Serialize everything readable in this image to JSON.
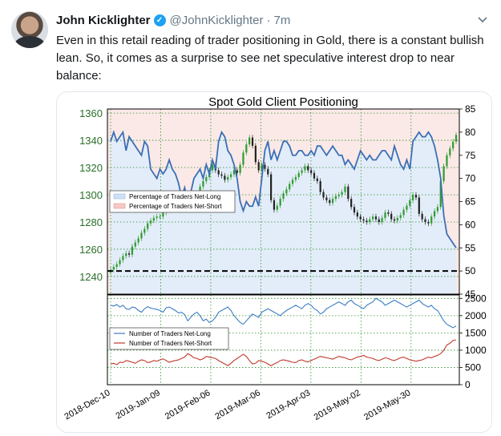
{
  "tweet": {
    "author_name": "John Kicklighter",
    "handle": "@JohnKicklighter",
    "separator": "·",
    "time": "7m",
    "text": "Even in this retail reading of trader positioning in Gold, there is a constant bullish lean. So, it comes as a surprise to see net speculative interest drop to near balance:",
    "icons": {
      "avatar": "profile-photo",
      "verified": "verified-badge-icon",
      "menu": "chevron-down-icon"
    }
  },
  "chart_data": [
    {
      "type": "line",
      "title": "Spot Gold Client Positioning",
      "y_left_ticks": [
        "1360",
        "1340",
        "1320",
        "1300",
        "1280",
        "1260",
        "1240"
      ],
      "y_left_range": [
        1227,
        1363
      ],
      "y_right_ticks": [
        "85",
        "80",
        "75",
        "70",
        "65",
        "60",
        "55",
        "50",
        "45"
      ],
      "y_right_range": [
        45,
        85
      ],
      "legend": [
        "Percentage of Traders Net-Long",
        "Percentage of Traders Net-Short"
      ],
      "legend_position": "middle-left",
      "reference_line": 50,
      "price_candles_close": [
        1245,
        1247,
        1249,
        1252,
        1255,
        1257,
        1256,
        1262,
        1265,
        1268,
        1272,
        1275,
        1279,
        1281,
        1283,
        1284,
        1284,
        1287,
        1289,
        1290,
        1292,
        1289,
        1291,
        1293,
        1292,
        1291,
        1294,
        1296,
        1301,
        1306,
        1310,
        1313,
        1318,
        1322,
        1318,
        1315,
        1314,
        1311,
        1313,
        1315,
        1318,
        1316,
        1322,
        1331,
        1337,
        1342,
        1336,
        1324,
        1318,
        1322,
        1319,
        1315,
        1296,
        1289,
        1292,
        1297,
        1301,
        1304,
        1308,
        1311,
        1313,
        1316,
        1318,
        1321,
        1318,
        1316,
        1312,
        1310,
        1302,
        1298,
        1296,
        1294,
        1297,
        1299,
        1300,
        1302,
        1306,
        1297,
        1291,
        1287,
        1284,
        1282,
        1281,
        1280,
        1282,
        1284,
        1282,
        1280,
        1283,
        1287,
        1286,
        1282,
        1281,
        1283,
        1285,
        1289,
        1292,
        1296,
        1300,
        1298,
        1286,
        1282,
        1280,
        1279,
        1284,
        1288,
        1291,
        1310,
        1321,
        1329,
        1334,
        1339,
        1344
      ],
      "net_long_pct": [
        78,
        80,
        78,
        79,
        80,
        76,
        79,
        78,
        77,
        76,
        75,
        78,
        77,
        72,
        71,
        70,
        72,
        71,
        72,
        74,
        72,
        71,
        69,
        66,
        68,
        65,
        67,
        70,
        71,
        72,
        70,
        73,
        71,
        74,
        72,
        78,
        80,
        79,
        76,
        75,
        73,
        70,
        65,
        63,
        65,
        64,
        64,
        66,
        64,
        70,
        76,
        78,
        74,
        76,
        74,
        76,
        78,
        78,
        77,
        75,
        75,
        76,
        76,
        75,
        75,
        76,
        75,
        77,
        77,
        76,
        75,
        76,
        77,
        76,
        75,
        75,
        73,
        74,
        73,
        72,
        74,
        76,
        75,
        74,
        75,
        74,
        74,
        75,
        76,
        76,
        75,
        74,
        77,
        75,
        73,
        72,
        74,
        72,
        78,
        79,
        80,
        79,
        79,
        80,
        79,
        77,
        74,
        70,
        62,
        58,
        57,
        56,
        55
      ],
      "x_tick_labels": [
        "2018-Dec-10",
        "2019-Jan-09",
        "2019-Feb-06",
        "2019-Mar-06",
        "2019-Apr-03",
        "2019-May-02",
        "2019-May-30"
      ]
    },
    {
      "type": "line",
      "y_right_ticks": [
        "2500",
        "2000",
        "1500",
        "1000",
        "500",
        "0"
      ],
      "y_right_range": [
        0,
        2600
      ],
      "legend": [
        "Number of Traders Net-Long",
        "Number of Traders Net-Short"
      ],
      "legend_position": "middle-left",
      "series": [
        {
          "name": "Number of Traders Net-Long",
          "color": "#3b7dc4",
          "values": [
            2300,
            2280,
            2320,
            2250,
            2300,
            2200,
            2180,
            2250,
            2230,
            2150,
            2100,
            2200,
            2260,
            2220,
            2200,
            2180,
            2150,
            2100,
            2230,
            2250,
            2200,
            2150,
            2080,
            2100,
            2030,
            1850,
            1950,
            2050,
            2100,
            2000,
            1850,
            1900,
            1800,
            1850,
            1950,
            2100,
            2150,
            2200,
            2250,
            2150,
            2000,
            1900,
            1800,
            1750,
            1850,
            1950,
            2050,
            2000,
            1950,
            2100,
            2150,
            2200,
            2150,
            2100,
            2050,
            2000,
            2080,
            2150,
            2200,
            2250,
            2300,
            2250,
            2200,
            2300,
            2350,
            2300,
            2200,
            2150,
            2050,
            2100,
            2200,
            2250,
            2300,
            2350,
            2400,
            2350,
            2300,
            2400,
            2450,
            2350,
            2300,
            2250,
            2200,
            2300,
            2350,
            2400,
            2500,
            2450,
            2400,
            2300,
            2350,
            2400,
            2450,
            2400,
            2350,
            2300,
            2250,
            2300,
            2350,
            2400,
            2450,
            2350,
            2300,
            2250,
            2300,
            2200,
            2150,
            2000,
            1850,
            1750,
            1700,
            1650,
            1700
          ]
        },
        {
          "name": "Number of Traders Net-Short",
          "color": "#c0392b",
          "values": [
            600,
            620,
            580,
            650,
            640,
            700,
            680,
            650,
            620,
            680,
            720,
            700,
            640,
            660,
            700,
            680,
            720,
            750,
            700,
            650,
            680,
            700,
            720,
            760,
            800,
            900,
            850,
            780,
            760,
            720,
            750,
            820,
            800,
            780,
            760,
            700,
            650,
            600,
            550,
            620,
            700,
            760,
            820,
            880,
            820,
            700,
            600,
            620,
            700,
            680,
            650,
            600,
            550,
            600,
            640,
            700,
            720,
            700,
            680,
            650,
            640,
            700,
            720,
            680,
            660,
            700,
            740,
            780,
            820,
            800,
            780,
            760,
            740,
            780,
            820,
            800,
            780,
            740,
            720,
            760,
            800,
            820,
            850,
            800,
            780,
            760,
            720,
            700,
            740,
            780,
            760,
            720,
            700,
            740,
            780,
            800,
            760,
            720,
            700,
            680,
            700,
            720,
            760,
            800,
            780,
            820,
            850,
            900,
            1000,
            1150,
            1200,
            1280,
            1300
          ]
        }
      ]
    }
  ],
  "card": {
    "frame_colors": {
      "grid": "#2f8f2f",
      "left_axis_text": "#2a6e2a",
      "long_fill": "#e3edf9",
      "short_fill": "#fbe9e7",
      "candle_up": "#2f9a2f",
      "candle_down": "#222222"
    }
  }
}
